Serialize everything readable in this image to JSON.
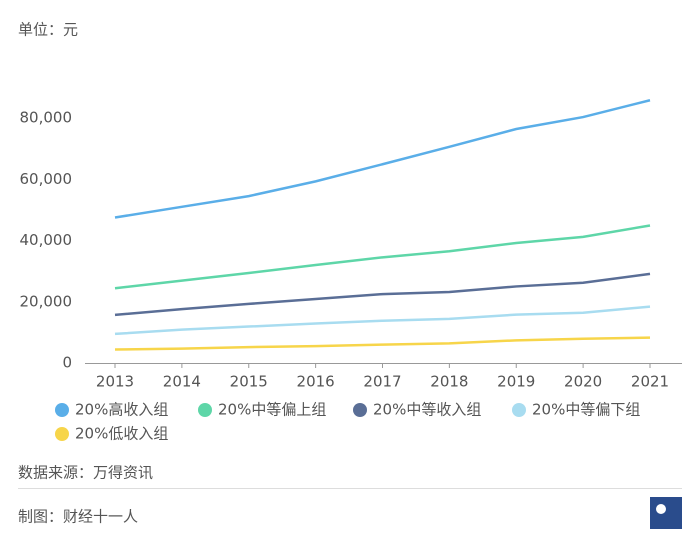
{
  "chart_data": {
    "type": "line",
    "unit_label": "单位：元",
    "categories": [
      "2013",
      "2014",
      "2015",
      "2016",
      "2017",
      "2018",
      "2019",
      "2020",
      "2021"
    ],
    "series": [
      {
        "name": "20%高收入组",
        "color": "#5aaee8",
        "values": [
          47500,
          51000,
          54500,
          59300,
          64900,
          70600,
          76400,
          80300,
          85800
        ]
      },
      {
        "name": "20%中等偏上组",
        "color": "#5ed6a8",
        "values": [
          24400,
          26900,
          29400,
          32000,
          34500,
          36500,
          39200,
          41200,
          44900
        ]
      },
      {
        "name": "20%中等收入组",
        "color": "#5a6e96",
        "values": [
          15700,
          17600,
          19300,
          20900,
          22500,
          23200,
          25000,
          26200,
          29100
        ]
      },
      {
        "name": "20%中等偏下组",
        "color": "#a8dcf0",
        "values": [
          9500,
          10900,
          11900,
          12900,
          13800,
          14400,
          15800,
          16400,
          18400
        ]
      },
      {
        "name": "20%低收入组",
        "color": "#f7d54a",
        "values": [
          4400,
          4700,
          5200,
          5500,
          6000,
          6400,
          7400,
          7900,
          8300
        ]
      }
    ],
    "ylim": [
      0,
      90000
    ],
    "yticks": [
      0,
      {
        "value": 20000,
        "label": "20,000"
      },
      {
        "value": 40000,
        "label": "40,000"
      },
      {
        "value": 60000,
        "label": "60,000"
      },
      {
        "value": 80000,
        "label": "80,000"
      }
    ],
    "grid": false,
    "source": "数据来源：万得资讯",
    "credit": "制图：财经十一人"
  }
}
